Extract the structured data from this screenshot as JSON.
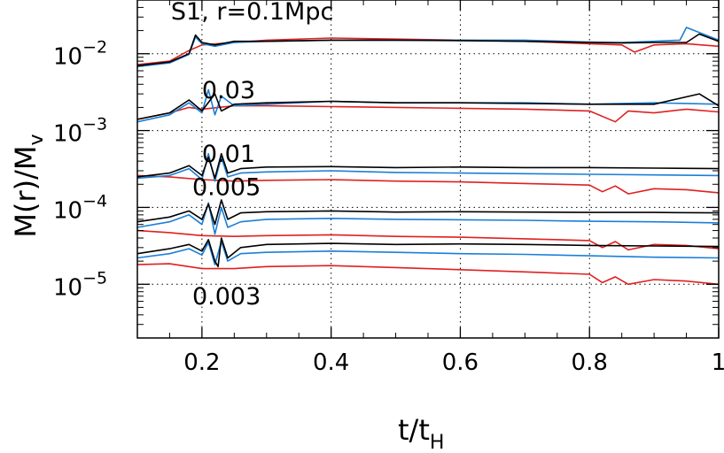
{
  "chart_data": {
    "type": "line",
    "title": "",
    "xlabel": {
      "base": "t/t",
      "sub": "H"
    },
    "ylabel": {
      "base": "M(r)/M",
      "sub": "v"
    },
    "xlim": [
      0.1,
      1.0
    ],
    "ylim": [
      2e-06,
      0.05
    ],
    "yscale": "log",
    "grid": "dotted",
    "xticks": [
      {
        "value": 0.2,
        "label": "0.2"
      },
      {
        "value": 0.4,
        "label": "0.4"
      },
      {
        "value": 0.6,
        "label": "0.6"
      },
      {
        "value": 0.8,
        "label": "0.8"
      },
      {
        "value": 1.0,
        "label": "1"
      }
    ],
    "yticks": [
      {
        "value": 1e-05,
        "base": "10",
        "exp": "−5"
      },
      {
        "value": 0.0001,
        "base": "10",
        "exp": "−4"
      },
      {
        "value": 0.001,
        "base": "10",
        "exp": "−3"
      },
      {
        "value": 0.01,
        "base": "10",
        "exp": "−2"
      }
    ],
    "colors": {
      "black": "#000000",
      "blue": "#1a7fd8",
      "red": "#e02020"
    },
    "annotations": [
      {
        "text": "S1, r=0.1Mpc",
        "x": 0.152,
        "y": 0.028
      },
      {
        "text": "0.03",
        "x": 0.2,
        "y": 0.00265
      },
      {
        "text": "0.01",
        "x": 0.2,
        "y": 0.00039
      },
      {
        "text": "0.005",
        "x": 0.185,
        "y": 0.000145
      },
      {
        "text": "0.003",
        "x": 0.185,
        "y": 5.5e-06
      }
    ],
    "groups": [
      {
        "label": "0.1Mpc",
        "series": [
          {
            "color": "black",
            "x": [
              0.1,
              0.15,
              0.18,
              0.19,
              0.2,
              0.22,
              0.25,
              0.3,
              0.4,
              0.5,
              0.6,
              0.7,
              0.8,
              0.85,
              0.9,
              0.95,
              0.97,
              1.0
            ],
            "y": [
              0.007,
              0.0078,
              0.01,
              0.0175,
              0.014,
              0.013,
              0.0145,
              0.0145,
              0.015,
              0.015,
              0.0148,
              0.0145,
              0.014,
              0.0138,
              0.014,
              0.014,
              0.018,
              0.0145
            ]
          },
          {
            "color": "blue",
            "x": [
              0.1,
              0.15,
              0.18,
              0.19,
              0.2,
              0.22,
              0.25,
              0.3,
              0.4,
              0.5,
              0.6,
              0.7,
              0.8,
              0.85,
              0.9,
              0.94,
              0.95,
              1.0
            ],
            "y": [
              0.0068,
              0.0076,
              0.0098,
              0.0165,
              0.0135,
              0.0125,
              0.014,
              0.0145,
              0.015,
              0.015,
              0.015,
              0.015,
              0.0142,
              0.014,
              0.0145,
              0.015,
              0.022,
              0.015
            ]
          },
          {
            "color": "red",
            "x": [
              0.1,
              0.15,
              0.18,
              0.2,
              0.25,
              0.3,
              0.4,
              0.5,
              0.6,
              0.7,
              0.8,
              0.85,
              0.87,
              0.9,
              0.95,
              1.0
            ],
            "y": [
              0.0072,
              0.008,
              0.011,
              0.013,
              0.014,
              0.015,
              0.016,
              0.0155,
              0.015,
              0.0145,
              0.0135,
              0.013,
              0.0105,
              0.013,
              0.0135,
              0.0125
            ]
          }
        ]
      },
      {
        "label": "0.03",
        "series": [
          {
            "color": "black",
            "x": [
              0.1,
              0.15,
              0.18,
              0.2,
              0.22,
              0.23,
              0.25,
              0.3,
              0.4,
              0.5,
              0.6,
              0.7,
              0.8,
              0.9,
              0.97,
              1.0
            ],
            "y": [
              0.0014,
              0.0017,
              0.0025,
              0.0018,
              0.003,
              0.0018,
              0.0022,
              0.0023,
              0.0024,
              0.0023,
              0.0023,
              0.00225,
              0.0022,
              0.0022,
              0.003,
              0.0021
            ]
          },
          {
            "color": "blue",
            "x": [
              0.1,
              0.15,
              0.18,
              0.2,
              0.21,
              0.22,
              0.23,
              0.25,
              0.3,
              0.4,
              0.5,
              0.6,
              0.7,
              0.8,
              0.9,
              1.0
            ],
            "y": [
              0.0013,
              0.0016,
              0.0023,
              0.0017,
              0.0034,
              0.0016,
              0.0028,
              0.0021,
              0.0022,
              0.0024,
              0.0023,
              0.0023,
              0.0023,
              0.0022,
              0.0023,
              0.0022
            ]
          },
          {
            "color": "red",
            "x": [
              0.1,
              0.15,
              0.18,
              0.2,
              0.25,
              0.3,
              0.4,
              0.5,
              0.6,
              0.7,
              0.8,
              0.84,
              0.86,
              0.9,
              0.95,
              1.0
            ],
            "y": [
              0.0014,
              0.0017,
              0.002,
              0.0019,
              0.0021,
              0.0021,
              0.00205,
              0.002,
              0.00195,
              0.0019,
              0.0018,
              0.0013,
              0.0018,
              0.0017,
              0.0019,
              0.00175
            ]
          }
        ]
      },
      {
        "label": "0.01",
        "series": [
          {
            "color": "black",
            "x": [
              0.1,
              0.15,
              0.18,
              0.2,
              0.21,
              0.22,
              0.23,
              0.24,
              0.26,
              0.3,
              0.4,
              0.5,
              0.6,
              0.7,
              0.8,
              0.9,
              1.0
            ],
            "y": [
              0.00025,
              0.00028,
              0.00035,
              0.00026,
              0.00045,
              0.00024,
              0.0005,
              0.00028,
              0.00032,
              0.000335,
              0.00034,
              0.00033,
              0.000335,
              0.00033,
              0.00033,
              0.000325,
              0.00032
            ]
          },
          {
            "color": "blue",
            "x": [
              0.1,
              0.15,
              0.18,
              0.2,
              0.21,
              0.22,
              0.23,
              0.24,
              0.26,
              0.3,
              0.4,
              0.5,
              0.6,
              0.7,
              0.8,
              0.9,
              1.0
            ],
            "y": [
              0.00024,
              0.00026,
              0.00032,
              0.00023,
              0.0005,
              0.00022,
              0.00045,
              0.00025,
              0.00028,
              0.00029,
              0.0003,
              0.000285,
              0.00028,
              0.000275,
              0.00027,
              0.000265,
              0.00026
            ]
          },
          {
            "color": "red",
            "x": [
              0.1,
              0.15,
              0.2,
              0.25,
              0.3,
              0.4,
              0.5,
              0.6,
              0.7,
              0.8,
              0.82,
              0.84,
              0.86,
              0.9,
              0.95,
              1.0
            ],
            "y": [
              0.00026,
              0.00025,
              0.00023,
              0.00022,
              0.000225,
              0.00023,
              0.00022,
              0.000215,
              0.000205,
              0.000195,
              0.00016,
              0.00019,
              0.00015,
              0.000175,
              0.00017,
              0.000155
            ]
          }
        ]
      },
      {
        "label": "0.005",
        "series": [
          {
            "color": "black",
            "x": [
              0.1,
              0.15,
              0.18,
              0.2,
              0.21,
              0.22,
              0.23,
              0.24,
              0.26,
              0.3,
              0.4,
              0.5,
              0.6,
              0.7,
              0.8,
              0.9,
              1.0
            ],
            "y": [
              6.5e-05,
              7.5e-05,
              9e-05,
              7e-05,
              0.00011,
              6e-05,
              0.000125,
              7e-05,
              8.5e-05,
              8.8e-05,
              9e-05,
              8.7e-05,
              8.8e-05,
              8.7e-05,
              8.6e-05,
              8.6e-05,
              8.5e-05
            ]
          },
          {
            "color": "blue",
            "x": [
              0.1,
              0.15,
              0.18,
              0.2,
              0.21,
              0.22,
              0.23,
              0.24,
              0.26,
              0.3,
              0.4,
              0.5,
              0.6,
              0.7,
              0.8,
              0.9,
              1.0
            ],
            "y": [
              5.5e-05,
              6.5e-05,
              8e-05,
              6e-05,
              0.000115,
              4.5e-05,
              0.0001,
              5.5e-05,
              6.5e-05,
              7e-05,
              7.2e-05,
              7e-05,
              6.9e-05,
              6.8e-05,
              6.6e-05,
              6.5e-05,
              6.3e-05
            ]
          },
          {
            "color": "red",
            "x": [
              0.1,
              0.15,
              0.2,
              0.25,
              0.3,
              0.4,
              0.5,
              0.6,
              0.7,
              0.8,
              0.82,
              0.84,
              0.86,
              0.9,
              0.95,
              1.0
            ],
            "y": [
              5e-05,
              4.7e-05,
              4.3e-05,
              4.2e-05,
              4.3e-05,
              4.4e-05,
              4.2e-05,
              4.1e-05,
              3.9e-05,
              3.7e-05,
              3e-05,
              3.6e-05,
              2.8e-05,
              3.3e-05,
              3.2e-05,
              2.9e-05
            ]
          }
        ]
      },
      {
        "label": "0.003",
        "series": [
          {
            "color": "black",
            "x": [
              0.1,
              0.15,
              0.18,
              0.2,
              0.21,
              0.22,
              0.225,
              0.23,
              0.24,
              0.26,
              0.3,
              0.4,
              0.5,
              0.6,
              0.7,
              0.8,
              0.9,
              1.0
            ],
            "y": [
              2.5e-05,
              2.9e-05,
              3.3e-05,
              2.7e-05,
              3.8e-05,
              2e-05,
              1.7e-05,
              4e-05,
              2.2e-05,
              3e-05,
              3.3e-05,
              3.4e-05,
              3.3e-05,
              3.35e-05,
              3.3e-05,
              3.2e-05,
              3.15e-05,
              3.1e-05
            ]
          },
          {
            "color": "blue",
            "x": [
              0.1,
              0.15,
              0.18,
              0.2,
              0.21,
              0.22,
              0.23,
              0.24,
              0.26,
              0.3,
              0.4,
              0.5,
              0.6,
              0.7,
              0.8,
              0.9,
              1.0
            ],
            "y": [
              2.2e-05,
              2.5e-05,
              2.9e-05,
              2.4e-05,
              3.5e-05,
              1.8e-05,
              3.6e-05,
              2e-05,
              2.5e-05,
              2.6e-05,
              2.7e-05,
              2.6e-05,
              2.5e-05,
              2.45e-05,
              2.35e-05,
              2.25e-05,
              2.2e-05
            ]
          },
          {
            "color": "red",
            "x": [
              0.1,
              0.15,
              0.2,
              0.25,
              0.3,
              0.4,
              0.5,
              0.6,
              0.7,
              0.8,
              0.82,
              0.84,
              0.86,
              0.9,
              0.95,
              1.0
            ],
            "y": [
              1.8e-05,
              1.85e-05,
              1.6e-05,
              1.6e-05,
              1.7e-05,
              1.75e-05,
              1.65e-05,
              1.55e-05,
              1.45e-05,
              1.35e-05,
              1.05e-05,
              1.25e-05,
              1e-05,
              1.15e-05,
              1.1e-05,
              1e-05
            ]
          }
        ]
      }
    ]
  }
}
